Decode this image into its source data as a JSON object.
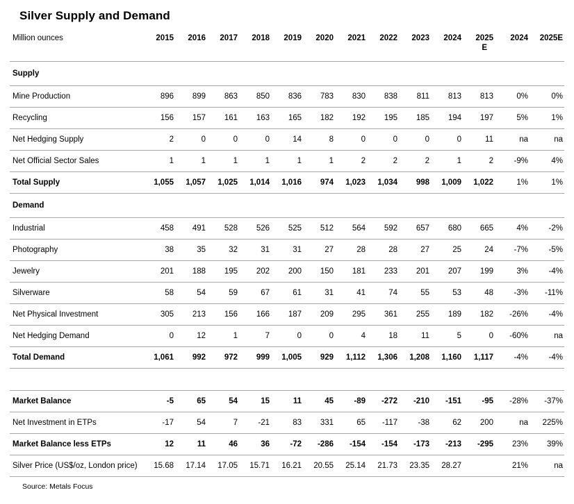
{
  "title": "Silver Supply and Demand",
  "source": "Source: Metals Focus",
  "table": {
    "unit_label": "Million ounces",
    "columns": [
      "2015",
      "2016",
      "2017",
      "2018",
      "2019",
      "2020",
      "2021",
      "2022",
      "2023",
      "2024",
      "2025 E",
      "2024",
      "2025E"
    ],
    "pct_column_start": 11,
    "rows": [
      {
        "type": "section",
        "label": "Supply"
      },
      {
        "type": "data",
        "label": "Mine Production",
        "values": [
          "896",
          "899",
          "863",
          "850",
          "836",
          "783",
          "830",
          "838",
          "811",
          "813",
          "813",
          "0%",
          "0%"
        ]
      },
      {
        "type": "data",
        "label": "Recycling",
        "values": [
          "156",
          "157",
          "161",
          "163",
          "165",
          "182",
          "192",
          "195",
          "185",
          "194",
          "197",
          "5%",
          "1%"
        ]
      },
      {
        "type": "data",
        "label": "Net Hedging Supply",
        "values": [
          "2",
          "0",
          "0",
          "0",
          "14",
          "8",
          "0",
          "0",
          "0",
          "0",
          "11",
          "na",
          "na"
        ]
      },
      {
        "type": "data",
        "label": "Net Official Sector Sales",
        "values": [
          "1",
          "1",
          "1",
          "1",
          "1",
          "1",
          "2",
          "2",
          "2",
          "1",
          "2",
          "-9%",
          "4%"
        ]
      },
      {
        "type": "total",
        "label": "Total Supply",
        "values": [
          "1,055",
          "1,057",
          "1,025",
          "1,014",
          "1,016",
          "974",
          "1,023",
          "1,034",
          "998",
          "1,009",
          "1,022",
          "1%",
          "1%"
        ]
      },
      {
        "type": "section",
        "label": "Demand"
      },
      {
        "type": "data",
        "label": "Industrial",
        "values": [
          "458",
          "491",
          "528",
          "526",
          "525",
          "512",
          "564",
          "592",
          "657",
          "680",
          "665",
          "4%",
          "-2%"
        ]
      },
      {
        "type": "data",
        "label": "Photography",
        "values": [
          "38",
          "35",
          "32",
          "31",
          "31",
          "27",
          "28",
          "28",
          "27",
          "25",
          "24",
          "-7%",
          "-5%"
        ]
      },
      {
        "type": "data",
        "label": "Jewelry",
        "values": [
          "201",
          "188",
          "195",
          "202",
          "200",
          "150",
          "181",
          "233",
          "201",
          "207",
          "199",
          "3%",
          "-4%"
        ]
      },
      {
        "type": "data",
        "label": "Silverware",
        "values": [
          "58",
          "54",
          "59",
          "67",
          "61",
          "31",
          "41",
          "74",
          "55",
          "53",
          "48",
          "-3%",
          "-11%"
        ]
      },
      {
        "type": "data",
        "label": "Net Physical Investment",
        "values": [
          "305",
          "213",
          "156",
          "166",
          "187",
          "209",
          "295",
          "361",
          "255",
          "189",
          "182",
          "-26%",
          "-4%"
        ]
      },
      {
        "type": "data",
        "label": "Net Hedging Demand",
        "values": [
          "0",
          "12",
          "1",
          "7",
          "0",
          "0",
          "4",
          "18",
          "11",
          "5",
          "0",
          "-60%",
          "na"
        ]
      },
      {
        "type": "total",
        "label": "Total Demand",
        "values": [
          "1,061",
          "992",
          "972",
          "999",
          "1,005",
          "929",
          "1,112",
          "1,306",
          "1,208",
          "1,160",
          "1,117",
          "-4%",
          "-4%"
        ]
      },
      {
        "type": "spacer"
      },
      {
        "type": "total",
        "label": "Market Balance",
        "values": [
          "-5",
          "65",
          "54",
          "15",
          "11",
          "45",
          "-89",
          "-272",
          "-210",
          "-151",
          "-95",
          "-28%",
          "-37%"
        ]
      },
      {
        "type": "data",
        "label": "Net Investment in ETPs",
        "values": [
          "-17",
          "54",
          "7",
          "-21",
          "83",
          "331",
          "65",
          "-117",
          "-38",
          "62",
          "200",
          "na",
          "225%"
        ]
      },
      {
        "type": "total",
        "label": "Market Balance less ETPs",
        "values": [
          "12",
          "11",
          "46",
          "36",
          "-72",
          "-286",
          "-154",
          "-154",
          "-173",
          "-213",
          "-295",
          "23%",
          "39%"
        ]
      },
      {
        "type": "data",
        "label": "Silver Price (US$/oz, London price)",
        "values": [
          "15.68",
          "17.14",
          "17.05",
          "15.71",
          "16.21",
          "20.55",
          "25.14",
          "21.73",
          "23.35",
          "28.27",
          "",
          "21%",
          "na"
        ]
      }
    ]
  }
}
